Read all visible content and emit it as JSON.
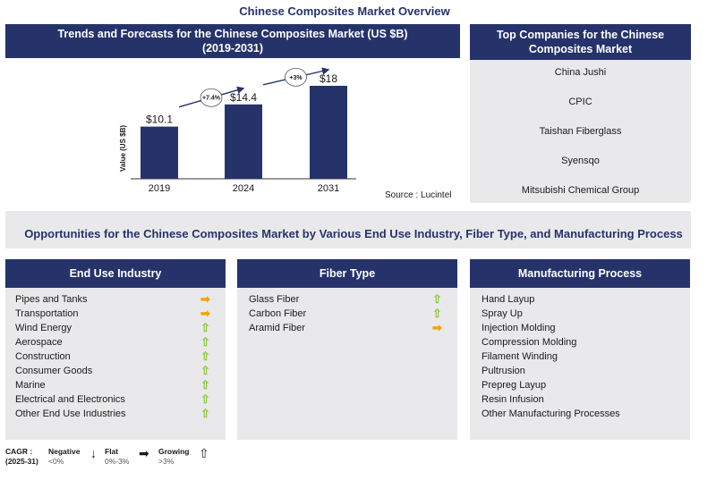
{
  "title": "Chinese Composites Market Overview",
  "chart_panel": {
    "title_line1": "Trends and Forecasts for the Chinese Composites Market (US $B)",
    "title_line2": "(2019-2031)",
    "source": "Source : Lucintel"
  },
  "chart_data": {
    "type": "bar",
    "title": "Trends and Forecasts for the Chinese Composites Market (US $B) (2019-2031)",
    "categories": [
      "2019",
      "2024",
      "2031"
    ],
    "values": [
      10.1,
      14.4,
      18
    ],
    "value_labels": [
      "$10.1",
      "$14.4",
      "$18"
    ],
    "ylabel": "Value (US $B)",
    "annotations": [
      "+7.4%",
      "+3%"
    ],
    "colors": {
      "bar": "#26336b"
    }
  },
  "companies": {
    "title": "Top Companies for the Chinese Composites Market",
    "items": [
      "China Jushi",
      "CPIC",
      "Taishan Fiberglass",
      "Syensqo",
      "Mitsubishi Chemical Group"
    ]
  },
  "opportunities_title": "Opportunities for the Chinese Composites Market by Various End Use Industry, Fiber Type, and Manufacturing Process",
  "end_use": {
    "title": "End Use Industry",
    "items": [
      {
        "label": "Pipes and Tanks",
        "trend": "flat"
      },
      {
        "label": "Transportation",
        "trend": "flat"
      },
      {
        "label": "Wind Energy",
        "trend": "up"
      },
      {
        "label": "Aerospace",
        "trend": "up"
      },
      {
        "label": "Construction",
        "trend": "up"
      },
      {
        "label": "Consumer Goods",
        "trend": "up"
      },
      {
        "label": "Marine",
        "trend": "up"
      },
      {
        "label": "Electrical and Electronics",
        "trend": "up"
      },
      {
        "label": "Other End Use Industries",
        "trend": "up"
      }
    ]
  },
  "fiber": {
    "title": "Fiber Type",
    "items": [
      {
        "label": "Glass Fiber",
        "trend": "up"
      },
      {
        "label": "Carbon Fiber",
        "trend": "up"
      },
      {
        "label": "Aramid Fiber",
        "trend": "flat"
      }
    ]
  },
  "process": {
    "title": "Manufacturing Process",
    "items": [
      "Hand Layup",
      "Spray Up",
      "Injection Molding",
      "Compression Molding",
      "Filament Winding",
      "Pultrusion",
      "Prepreg Layup",
      "Resin Infusion",
      "Other Manufacturing  Processes"
    ]
  },
  "legend": {
    "cagr": "CAGR :",
    "period": "(2025-31)",
    "negative": "Negative",
    "negative_range": "<0%",
    "flat": "Flat",
    "flat_range": "0%-3%",
    "growing": "Growing",
    "growing_range": ">3%"
  },
  "colors": {
    "navy": "#26336b",
    "panel": "#e9e9eb",
    "up": "#8dc63f",
    "flat": "#f7a400",
    "down": "#c0171f"
  }
}
